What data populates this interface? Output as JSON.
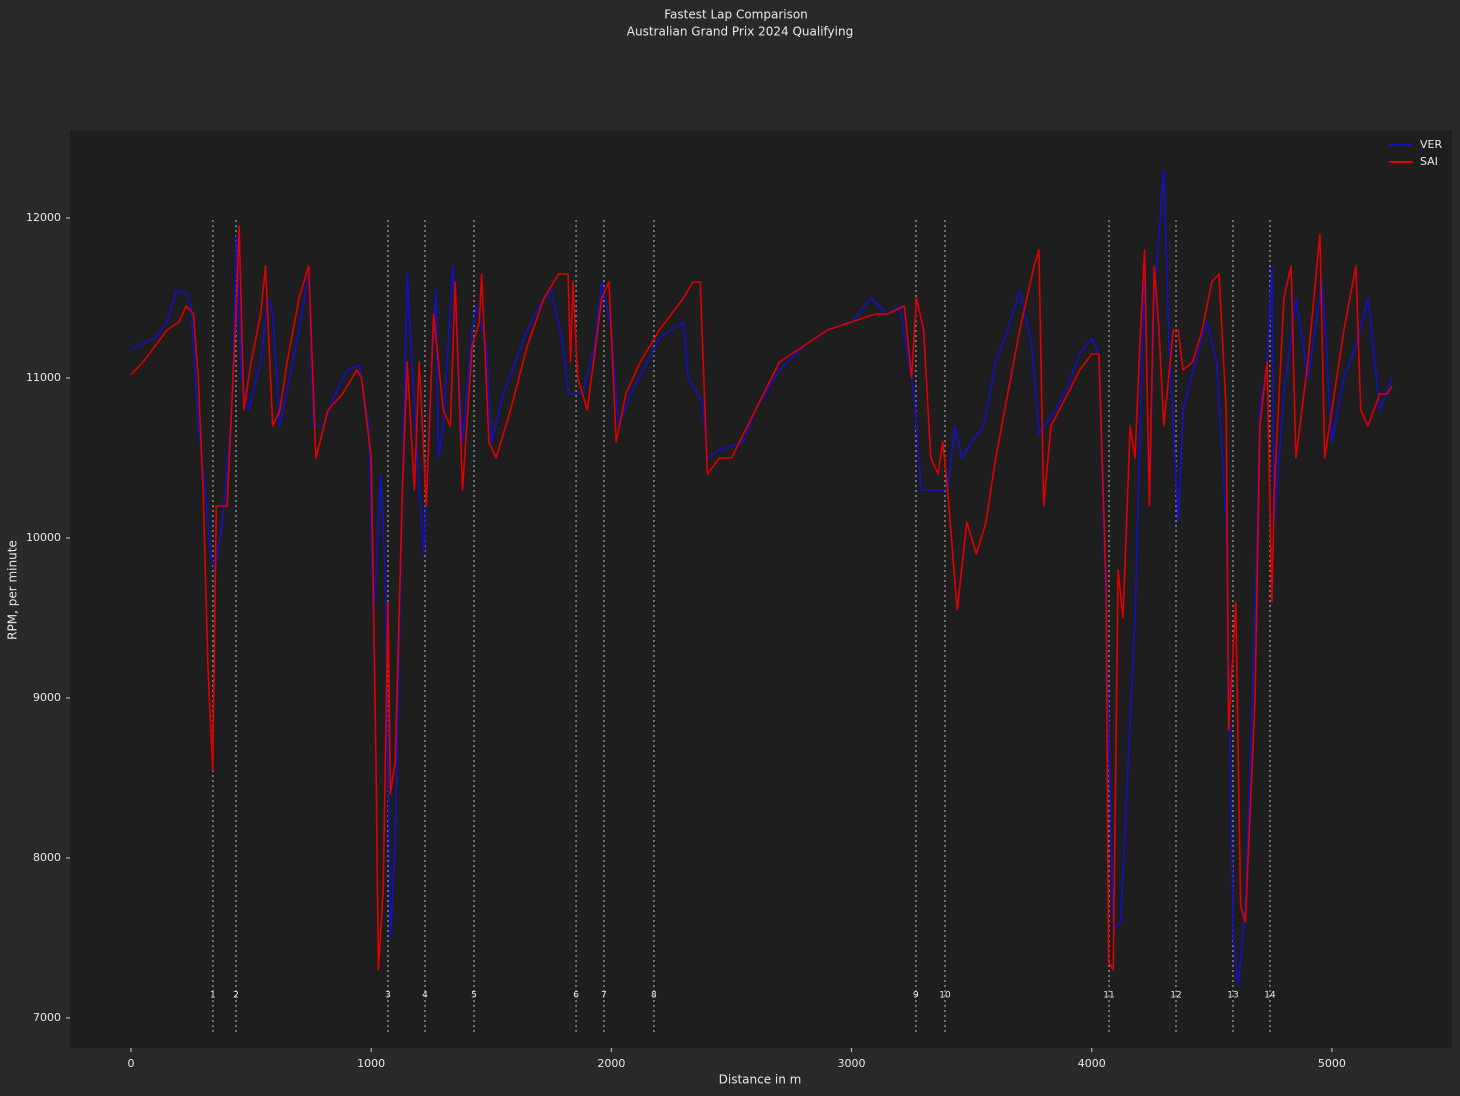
{
  "chart_data": {
    "type": "line",
    "title": "Fastest Lap Comparison",
    "subtitle": "Australian Grand Prix 2024 Qualifying",
    "x_label": "Distance in m",
    "y_label": "RPM, per minute",
    "xlim": [
      -254,
      5500
    ],
    "ylim": [
      6812,
      12550
    ],
    "xticks": [
      0,
      1000,
      2000,
      3000,
      4000,
      5000
    ],
    "yticks": [
      7000,
      8000,
      9000,
      10000,
      11000,
      12000
    ],
    "legend": "upper right",
    "corners": {
      "numbers": [
        1,
        2,
        3,
        4,
        5,
        6,
        7,
        8,
        9,
        10,
        11,
        12,
        13,
        14
      ],
      "distances": [
        341,
        437,
        1070,
        1224,
        1428,
        1853,
        1969,
        2177,
        3268,
        3389,
        4072,
        4351,
        4588,
        4742
      ]
    },
    "series": [
      {
        "name": "VER",
        "color": "#1410c8",
        "x": [
          0,
          100,
          150,
          190,
          230,
          250,
          280,
          310,
          330,
          350,
          380,
          420,
          440,
          460,
          490,
          540,
          570,
          590,
          620,
          660,
          700,
          740,
          760,
          800,
          850,
          900,
          950,
          990,
          1010,
          1040,
          1060,
          1080,
          1100,
          1130,
          1150,
          1170,
          1200,
          1220,
          1250,
          1270,
          1280,
          1300,
          1340,
          1380,
          1420,
          1440,
          1480,
          1500,
          1550,
          1600,
          1650,
          1700,
          1750,
          1800,
          1820,
          1840,
          1880,
          1930,
          1960,
          2000,
          2030,
          2080,
          2150,
          2200,
          2300,
          2320,
          2380,
          2400,
          2450,
          2550,
          2600,
          2700,
          2800,
          2900,
          3000,
          3080,
          3150,
          3200,
          3260,
          3290,
          3350,
          3400,
          3430,
          3460,
          3500,
          3550,
          3600,
          3650,
          3700,
          3750,
          3780,
          3850,
          3900,
          3950,
          4000,
          4030,
          4060,
          4090,
          4120,
          4180,
          4200,
          4220,
          4240,
          4260,
          4300,
          4320,
          4360,
          4380,
          4430,
          4480,
          4520,
          4560,
          4590,
          4610,
          4640,
          4680,
          4700,
          4730,
          4750,
          4760,
          4800,
          4850,
          4900,
          4960,
          5000,
          5050,
          5100,
          5150,
          5200,
          5250
        ],
        "values": [
          11180,
          11250,
          11350,
          11550,
          11530,
          11450,
          10700,
          10300,
          9900,
          9800,
          10100,
          10800,
          11900,
          11000,
          10800,
          11100,
          11500,
          11400,
          10700,
          11000,
          11300,
          11650,
          10700,
          10700,
          10900,
          11050,
          11080,
          10700,
          9500,
          10400,
          9700,
          7500,
          8100,
          10300,
          11650,
          11100,
          10300,
          9900,
          11000,
          11550,
          10500,
          10700,
          11700,
          10600,
          11300,
          11450,
          11200,
          10600,
          10900,
          11100,
          11300,
          11450,
          11550,
          11200,
          10900,
          10900,
          10900,
          11200,
          11600,
          11300,
          10700,
          10900,
          11100,
          11250,
          11350,
          11000,
          10850,
          10500,
          10550,
          10600,
          10800,
          11050,
          11200,
          11300,
          11350,
          11500,
          11400,
          11450,
          10900,
          10300,
          10300,
          10300,
          10700,
          10500,
          10600,
          10700,
          11100,
          11300,
          11550,
          11200,
          10650,
          10800,
          10950,
          11150,
          11250,
          11150,
          9500,
          7550,
          7600,
          9500,
          10600,
          11800,
          10200,
          11500,
          12300,
          11300,
          10100,
          10800,
          11100,
          11350,
          11100,
          10100,
          7500,
          7200,
          7700,
          9500,
          10800,
          11100,
          11700,
          10100,
          10900,
          11500,
          11000,
          11600,
          10600,
          11000,
          11200,
          11500,
          10800,
          11000
        ]
      },
      {
        "name": "SAI",
        "color": "#e00000",
        "x": [
          0,
          50,
          100,
          150,
          200,
          230,
          260,
          280,
          300,
          320,
          340,
          355,
          400,
          440,
          450,
          470,
          500,
          540,
          560,
          590,
          620,
          650,
          700,
          740,
          770,
          820,
          880,
          940,
          960,
          1000,
          1020,
          1030,
          1050,
          1070,
          1080,
          1100,
          1130,
          1150,
          1180,
          1200,
          1230,
          1260,
          1300,
          1330,
          1350,
          1380,
          1420,
          1450,
          1460,
          1490,
          1520,
          1580,
          1650,
          1720,
          1780,
          1820,
          1830,
          1840,
          1860,
          1900,
          1960,
          1990,
          2020,
          2060,
          2120,
          2200,
          2300,
          2340,
          2370,
          2400,
          2450,
          2500,
          2600,
          2700,
          2800,
          2900,
          3000,
          3100,
          3150,
          3220,
          3250,
          3270,
          3300,
          3330,
          3360,
          3380,
          3400,
          3440,
          3480,
          3520,
          3560,
          3600,
          3650,
          3700,
          3760,
          3780,
          3800,
          3830,
          3900,
          3950,
          4000,
          4030,
          4060,
          4070,
          4090,
          4110,
          4130,
          4160,
          4180,
          4200,
          4220,
          4240,
          4260,
          4280,
          4300,
          4340,
          4360,
          4380,
          4420,
          4460,
          4500,
          4530,
          4560,
          4570,
          4600,
          4620,
          4640,
          4680,
          4700,
          4730,
          4750,
          4760,
          4800,
          4830,
          4850,
          4900,
          4950,
          4970,
          5000,
          5050,
          5100,
          5120,
          5150,
          5200,
          5230,
          5250
        ],
        "values": [
          11020,
          11100,
          11200,
          11300,
          11350,
          11450,
          11400,
          11000,
          10300,
          9200,
          8550,
          10200,
          10200,
          11500,
          11950,
          10800,
          11100,
          11400,
          11700,
          10700,
          10800,
          11100,
          11500,
          11700,
          10500,
          10800,
          10900,
          11050,
          11000,
          10500,
          8600,
          7300,
          7800,
          9600,
          8400,
          8600,
          10300,
          11100,
          10300,
          11100,
          10200,
          11400,
          10800,
          10700,
          11600,
          10300,
          11200,
          11350,
          11650,
          10600,
          10500,
          10800,
          11200,
          11500,
          11650,
          11650,
          11100,
          11600,
          11000,
          10800,
          11500,
          11600,
          10600,
          10900,
          11100,
          11300,
          11500,
          11600,
          11600,
          10400,
          10500,
          10500,
          10800,
          11100,
          11200,
          11300,
          11350,
          11400,
          11400,
          11450,
          11000,
          11500,
          11300,
          10500,
          10400,
          10600,
          10300,
          9550,
          10100,
          9900,
          10100,
          10500,
          10900,
          11300,
          11700,
          11800,
          10200,
          10700,
          10900,
          11050,
          11150,
          11150,
          9700,
          7350,
          7300,
          9800,
          9500,
          10700,
          10500,
          11200,
          11800,
          10200,
          11700,
          11300,
          10700,
          11300,
          11300,
          11050,
          11100,
          11300,
          11600,
          11650,
          10800,
          8800,
          9600,
          7700,
          7600,
          9000,
          10700,
          11100,
          9600,
          10300,
          11500,
          11700,
          10500,
          11100,
          11900,
          10500,
          10800,
          11300,
          11700,
          10800,
          10700,
          10900,
          10900,
          10950
        ]
      }
    ]
  }
}
